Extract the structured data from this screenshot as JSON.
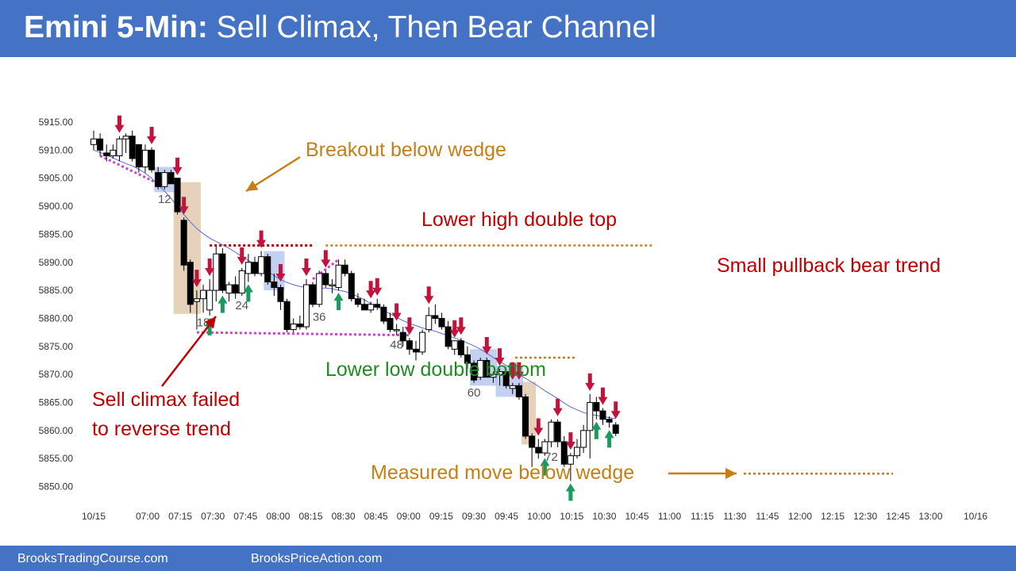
{
  "header": {
    "title_bold": "Emini 5-Min:",
    "title_rest": " Sell Climax, Then Bear Channel"
  },
  "footer": {
    "left": "BrooksTradingCourse.com",
    "right": "BrooksPriceAction.com"
  },
  "colors": {
    "header_bg": "#4472c4",
    "bull_candle": "#ffffff",
    "bear_candle": "#000000",
    "ema": "#5a6ad0",
    "sell_arrow": "#c0143c",
    "buy_arrow": "#1a9a5c",
    "annotation_red": "#c00000",
    "annotation_orange": "#c67f16",
    "annotation_green": "#228b22",
    "wedge_line": "#d040d0",
    "highlight_blue": "#aabcea",
    "highlight_tan": "#dec3a4"
  },
  "chart_data": {
    "type": "candlestick",
    "y_ticks": [
      "5915.00",
      "5910.00",
      "5905.00",
      "5900.00",
      "5895.00",
      "5890.00",
      "5885.00",
      "5880.00",
      "5875.00",
      "5870.00",
      "5865.00",
      "5860.00",
      "5855.00",
      "5850.00"
    ],
    "ylim": [
      5848,
      5918
    ],
    "x_ticks": [
      "10/15",
      "07:00",
      "07:15",
      "07:30",
      "07:45",
      "08:00",
      "08:15",
      "08:30",
      "08:45",
      "09:00",
      "09:15",
      "09:30",
      "09:45",
      "10:00",
      "10:15",
      "10:30",
      "10:45",
      "11:00",
      "11:15",
      "11:30",
      "11:45",
      "12:00",
      "12:15",
      "12:30",
      "12:45",
      "13:00",
      "10/16"
    ],
    "bar_number_labels": [
      {
        "bar": 12,
        "label": "12"
      },
      {
        "bar": 18,
        "label": "18"
      },
      {
        "bar": 24,
        "label": "24"
      },
      {
        "bar": 36,
        "label": "36"
      },
      {
        "bar": 48,
        "label": "48"
      },
      {
        "bar": 60,
        "label": "60"
      },
      {
        "bar": 72,
        "label": "72"
      }
    ],
    "candles": [
      {
        "o": 5911.0,
        "h": 5913.5,
        "l": 5910.0,
        "c": 5912.0
      },
      {
        "o": 5912.0,
        "h": 5913.0,
        "l": 5909.0,
        "c": 5910.0
      },
      {
        "o": 5909.5,
        "h": 5911.0,
        "l": 5908.0,
        "c": 5909.0
      },
      {
        "o": 5909.0,
        "h": 5911.0,
        "l": 5908.5,
        "c": 5910.0
      },
      {
        "o": 5909.0,
        "h": 5912.5,
        "l": 5908.0,
        "c": 5912.0
      },
      {
        "o": 5912.0,
        "h": 5913.0,
        "l": 5909.5,
        "c": 5912.5
      },
      {
        "o": 5912.5,
        "h": 5913.5,
        "l": 5908.0,
        "c": 5908.5
      },
      {
        "o": 5911.0,
        "h": 5911.0,
        "l": 5906.0,
        "c": 5907.0
      },
      {
        "o": 5907.0,
        "h": 5911.0,
        "l": 5906.0,
        "c": 5910.0
      },
      {
        "o": 5910.0,
        "h": 5910.5,
        "l": 5906.0,
        "c": 5906.5
      },
      {
        "o": 5906.0,
        "h": 5907.0,
        "l": 5903.0,
        "c": 5903.5
      },
      {
        "o": 5903.5,
        "h": 5906.5,
        "l": 5903.0,
        "c": 5906.0
      },
      {
        "o": 5906.0,
        "h": 5906.5,
        "l": 5904.0,
        "c": 5904.0
      },
      {
        "o": 5905.0,
        "h": 5905.0,
        "l": 5898.5,
        "c": 5899.0
      },
      {
        "o": 5897.5,
        "h": 5898.0,
        "l": 5888.5,
        "c": 5889.5
      },
      {
        "o": 5890.0,
        "h": 5890.5,
        "l": 5881.0,
        "c": 5882.5
      },
      {
        "o": 5883.0,
        "h": 5885.0,
        "l": 5878.0,
        "c": 5883.5
      },
      {
        "o": 5883.5,
        "h": 5886.0,
        "l": 5881.0,
        "c": 5885.0
      },
      {
        "o": 5881.5,
        "h": 5887.0,
        "l": 5880.5,
        "c": 5885.0
      },
      {
        "o": 5885.0,
        "h": 5893.0,
        "l": 5883.0,
        "c": 5891.5
      },
      {
        "o": 5891.5,
        "h": 5892.5,
        "l": 5884.5,
        "c": 5885.0
      },
      {
        "o": 5884.5,
        "h": 5886.5,
        "l": 5883.0,
        "c": 5886.0
      },
      {
        "o": 5886.0,
        "h": 5887.5,
        "l": 5883.5,
        "c": 5884.5
      },
      {
        "o": 5884.5,
        "h": 5889.0,
        "l": 5884.0,
        "c": 5888.5
      },
      {
        "o": 5888.0,
        "h": 5891.5,
        "l": 5886.5,
        "c": 5890.0
      },
      {
        "o": 5890.0,
        "h": 5891.0,
        "l": 5887.5,
        "c": 5888.0
      },
      {
        "o": 5888.0,
        "h": 5892.0,
        "l": 5887.5,
        "c": 5891.0
      },
      {
        "o": 5891.0,
        "h": 5891.5,
        "l": 5886.0,
        "c": 5886.5
      },
      {
        "o": 5886.5,
        "h": 5888.0,
        "l": 5884.0,
        "c": 5885.5
      },
      {
        "o": 5885.5,
        "h": 5886.0,
        "l": 5881.5,
        "c": 5883.0
      },
      {
        "o": 5883.0,
        "h": 5883.5,
        "l": 5877.5,
        "c": 5878.0
      },
      {
        "o": 5878.0,
        "h": 5880.0,
        "l": 5877.5,
        "c": 5879.0
      },
      {
        "o": 5879.0,
        "h": 5880.5,
        "l": 5878.0,
        "c": 5878.5
      },
      {
        "o": 5878.5,
        "h": 5887.0,
        "l": 5878.0,
        "c": 5886.0
      },
      {
        "o": 5886.0,
        "h": 5886.5,
        "l": 5882.0,
        "c": 5882.5
      },
      {
        "o": 5882.5,
        "h": 5888.5,
        "l": 5882.0,
        "c": 5888.0
      },
      {
        "o": 5888.0,
        "h": 5888.5,
        "l": 5885.5,
        "c": 5886.0
      },
      {
        "o": 5886.0,
        "h": 5887.0,
        "l": 5884.5,
        "c": 5886.0
      },
      {
        "o": 5885.5,
        "h": 5890.5,
        "l": 5885.0,
        "c": 5889.5
      },
      {
        "o": 5889.5,
        "h": 5890.5,
        "l": 5887.5,
        "c": 5888.0
      },
      {
        "o": 5888.0,
        "h": 5888.5,
        "l": 5883.0,
        "c": 5883.5
      },
      {
        "o": 5883.5,
        "h": 5884.5,
        "l": 5882.0,
        "c": 5882.5
      },
      {
        "o": 5882.5,
        "h": 5883.5,
        "l": 5881.5,
        "c": 5881.5
      },
      {
        "o": 5881.5,
        "h": 5883.0,
        "l": 5881.0,
        "c": 5882.5
      },
      {
        "o": 5882.5,
        "h": 5883.5,
        "l": 5881.5,
        "c": 5882.0
      },
      {
        "o": 5882.0,
        "h": 5882.5,
        "l": 5879.0,
        "c": 5879.5
      },
      {
        "o": 5880.0,
        "h": 5881.0,
        "l": 5877.5,
        "c": 5878.0
      },
      {
        "o": 5878.0,
        "h": 5879.0,
        "l": 5877.0,
        "c": 5878.0
      },
      {
        "o": 5877.5,
        "h": 5878.5,
        "l": 5875.0,
        "c": 5876.0
      },
      {
        "o": 5876.0,
        "h": 5876.5,
        "l": 5873.5,
        "c": 5874.5
      },
      {
        "o": 5874.5,
        "h": 5876.0,
        "l": 5872.5,
        "c": 5874.0
      },
      {
        "o": 5874.0,
        "h": 5878.0,
        "l": 5873.5,
        "c": 5877.5
      },
      {
        "o": 5878.0,
        "h": 5882.0,
        "l": 5877.5,
        "c": 5880.5
      },
      {
        "o": 5880.5,
        "h": 5882.5,
        "l": 5879.0,
        "c": 5880.0
      },
      {
        "o": 5880.0,
        "h": 5881.0,
        "l": 5878.0,
        "c": 5878.5
      },
      {
        "o": 5878.5,
        "h": 5879.5,
        "l": 5874.5,
        "c": 5875.0
      },
      {
        "o": 5874.5,
        "h": 5876.0,
        "l": 5873.5,
        "c": 5876.0
      },
      {
        "o": 5876.0,
        "h": 5876.5,
        "l": 5873.0,
        "c": 5873.5
      },
      {
        "o": 5873.5,
        "h": 5875.0,
        "l": 5871.0,
        "c": 5872.0
      },
      {
        "o": 5872.0,
        "h": 5872.5,
        "l": 5868.5,
        "c": 5869.0
      },
      {
        "o": 5869.5,
        "h": 5873.0,
        "l": 5869.0,
        "c": 5872.5
      },
      {
        "o": 5872.5,
        "h": 5873.0,
        "l": 5869.5,
        "c": 5869.5
      },
      {
        "o": 5869.5,
        "h": 5870.5,
        "l": 5868.5,
        "c": 5870.0
      },
      {
        "o": 5870.0,
        "h": 5871.0,
        "l": 5868.0,
        "c": 5870.5
      },
      {
        "o": 5870.5,
        "h": 5871.0,
        "l": 5867.5,
        "c": 5868.0
      },
      {
        "o": 5867.5,
        "h": 5868.5,
        "l": 5866.5,
        "c": 5868.0
      },
      {
        "o": 5868.0,
        "h": 5868.5,
        "l": 5865.5,
        "c": 5866.0
      },
      {
        "o": 5866.0,
        "h": 5866.5,
        "l": 5858.5,
        "c": 5859.0
      },
      {
        "o": 5859.0,
        "h": 5859.5,
        "l": 5853.5,
        "c": 5857.0
      },
      {
        "o": 5857.0,
        "h": 5858.5,
        "l": 5855.0,
        "c": 5856.0
      },
      {
        "o": 5856.0,
        "h": 5858.5,
        "l": 5855.5,
        "c": 5858.0
      },
      {
        "o": 5858.0,
        "h": 5862.0,
        "l": 5857.0,
        "c": 5861.5
      },
      {
        "o": 5861.5,
        "h": 5862.0,
        "l": 5857.0,
        "c": 5858.0
      },
      {
        "o": 5858.0,
        "h": 5859.0,
        "l": 5853.5,
        "c": 5854.0
      },
      {
        "o": 5854.0,
        "h": 5856.0,
        "l": 5851.0,
        "c": 5855.5
      },
      {
        "o": 5855.5,
        "h": 5858.5,
        "l": 5855.0,
        "c": 5857.0
      },
      {
        "o": 5857.0,
        "h": 5861.0,
        "l": 5856.0,
        "c": 5860.0
      },
      {
        "o": 5860.0,
        "h": 5866.5,
        "l": 5855.0,
        "c": 5865.0
      },
      {
        "o": 5865.0,
        "h": 5866.0,
        "l": 5862.0,
        "c": 5863.5
      },
      {
        "o": 5863.5,
        "h": 5864.0,
        "l": 5861.0,
        "c": 5862.0
      },
      {
        "o": 5862.0,
        "h": 5862.5,
        "l": 5860.5,
        "c": 5861.5
      },
      {
        "o": 5861.0,
        "h": 5861.5,
        "l": 5859.0,
        "c": 5859.5
      }
    ],
    "ema_20": [
      5910.0,
      5909.6,
      5909.1,
      5908.6,
      5908.1,
      5907.6,
      5907.2,
      5906.6,
      5905.9,
      5905.0,
      5903.8,
      5902.7,
      5901.4,
      5900.0,
      5898.5,
      5897.2,
      5896.0,
      5895.1,
      5894.3,
      5893.7,
      5893.1,
      5892.5,
      5891.8,
      5891.0,
      5890.3,
      5889.7,
      5889.1,
      5888.4,
      5887.6,
      5886.9,
      5886.4,
      5886.0,
      5885.7,
      5885.5,
      5885.4,
      5885.4,
      5885.4,
      5885.3,
      5885.0,
      5884.8,
      5884.4,
      5883.9,
      5883.3,
      5882.6,
      5882.0,
      5881.4,
      5880.8,
      5880.2,
      5879.6,
      5879.1,
      5878.7,
      5878.3,
      5878.0,
      5877.7,
      5877.3,
      5876.9,
      5876.5,
      5876.1,
      5875.6,
      5875.1,
      5874.5,
      5873.8,
      5873.0,
      5872.3,
      5871.6,
      5870.9,
      5870.0,
      5869.3,
      5868.6,
      5867.9,
      5867.1,
      5866.4,
      5865.7,
      5864.9,
      5864.2,
      5863.7,
      5863.2,
      5862.9,
      5862.7,
      5862.5,
      5862.3,
      5862.1
    ]
  },
  "annotations": {
    "breakout": "Breakout below wedge",
    "lower_high": "Lower high double top",
    "small_pullback": "Small pullback bear trend",
    "lower_low": "Lower low double bottom",
    "sell_climax_1": "Sell climax failed",
    "sell_climax_2": "to reverse trend",
    "measured_move": "Measured move below wedge"
  }
}
